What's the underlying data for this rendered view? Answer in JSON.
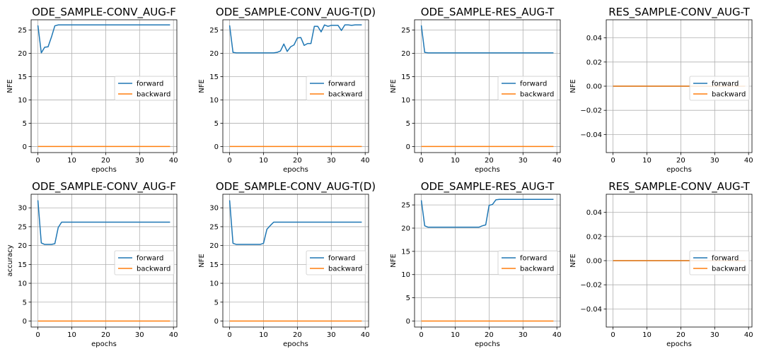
{
  "colors": {
    "forward": "#1f77b4",
    "backward": "#ff7f0e",
    "grid": "#b0b0b0"
  },
  "chart_data": [
    {
      "type": "line",
      "title": "ODE_SAMPLE-CONV_AUG-F",
      "xlabel": "epochs",
      "ylabel": "NFE",
      "xlim": [
        -2,
        41
      ],
      "ylim": [
        -1.3,
        27.2
      ],
      "xticks": [
        0,
        10,
        20,
        30,
        40
      ],
      "yticks": [
        0,
        5,
        10,
        15,
        20,
        25
      ],
      "yticklabels": [
        "0",
        "5",
        "10",
        "15",
        "20",
        "25"
      ],
      "grid": true,
      "legend": "center-right",
      "series": [
        {
          "name": "forward",
          "values": [
            26,
            20.1,
            21.3,
            21.4,
            23.5,
            25.9,
            26.1,
            26.1,
            26.1,
            26.1,
            26.1,
            26.1,
            26.1,
            26.1,
            26.1,
            26.1,
            26.1,
            26.1,
            26.1,
            26.1,
            26.1,
            26.1,
            26.1,
            26.1,
            26.1,
            26.1,
            26.1,
            26.1,
            26.1,
            26.1,
            26.1,
            26.1,
            26.1,
            26.1,
            26.1,
            26.1,
            26.1,
            26.1,
            26.1,
            26.1
          ]
        },
        {
          "name": "backward",
          "values": [
            0,
            0,
            0,
            0,
            0,
            0,
            0,
            0,
            0,
            0,
            0,
            0,
            0,
            0,
            0,
            0,
            0,
            0,
            0,
            0,
            0,
            0,
            0,
            0,
            0,
            0,
            0,
            0,
            0,
            0,
            0,
            0,
            0,
            0,
            0,
            0,
            0,
            0,
            0,
            0
          ]
        }
      ]
    },
    {
      "type": "line",
      "title": "ODE_SAMPLE-CONV_AUG-T(D)",
      "xlabel": "epochs",
      "ylabel": "NFE",
      "xlim": [
        -2,
        41
      ],
      "ylim": [
        -1.3,
        27.2
      ],
      "xticks": [
        0,
        10,
        20,
        30,
        40
      ],
      "yticks": [
        0,
        5,
        10,
        15,
        20,
        25
      ],
      "yticklabels": [
        "0",
        "5",
        "10",
        "15",
        "20",
        "25"
      ],
      "grid": true,
      "legend": "center-right",
      "series": [
        {
          "name": "forward",
          "values": [
            26,
            20.2,
            20.1,
            20.1,
            20.1,
            20.1,
            20.1,
            20.1,
            20.1,
            20.1,
            20.1,
            20.1,
            20.1,
            20.1,
            20.2,
            20.5,
            22,
            20.4,
            21.4,
            21.8,
            23.3,
            23.4,
            21.7,
            22.1,
            22.1,
            25.8,
            25.8,
            24.6,
            26.1,
            25.8,
            26,
            26,
            26,
            24.9,
            26.1,
            26.1,
            26,
            26.1,
            26.1,
            26.1
          ]
        },
        {
          "name": "backward",
          "values": [
            0,
            0,
            0,
            0,
            0,
            0,
            0,
            0,
            0,
            0,
            0,
            0,
            0,
            0,
            0,
            0,
            0,
            0,
            0,
            0,
            0,
            0,
            0,
            0,
            0,
            0,
            0,
            0,
            0,
            0,
            0,
            0,
            0,
            0,
            0,
            0,
            0,
            0,
            0,
            0
          ]
        }
      ]
    },
    {
      "type": "line",
      "title": "ODE_SAMPLE-RES_AUG-T",
      "xlabel": "epochs",
      "ylabel": "NFE",
      "xlim": [
        -2,
        41
      ],
      "ylim": [
        -1.3,
        27.2
      ],
      "xticks": [
        0,
        10,
        20,
        30,
        40
      ],
      "yticks": [
        0,
        5,
        10,
        15,
        20,
        25
      ],
      "yticklabels": [
        "0",
        "5",
        "10",
        "15",
        "20",
        "25"
      ],
      "grid": true,
      "legend": "center-right",
      "series": [
        {
          "name": "forward",
          "values": [
            26,
            20.2,
            20.1,
            20.1,
            20.1,
            20.1,
            20.1,
            20.1,
            20.1,
            20.1,
            20.1,
            20.1,
            20.1,
            20.1,
            20.1,
            20.1,
            20.1,
            20.1,
            20.1,
            20.1,
            20.1,
            20.1,
            20.1,
            20.1,
            20.1,
            20.1,
            20.1,
            20.1,
            20.1,
            20.1,
            20.1,
            20.1,
            20.1,
            20.1,
            20.1,
            20.1,
            20.1,
            20.1,
            20.1,
            20.1
          ]
        },
        {
          "name": "backward",
          "values": [
            0,
            0,
            0,
            0,
            0,
            0,
            0,
            0,
            0,
            0,
            0,
            0,
            0,
            0,
            0,
            0,
            0,
            0,
            0,
            0,
            0,
            0,
            0,
            0,
            0,
            0,
            0,
            0,
            0,
            0,
            0,
            0,
            0,
            0,
            0,
            0,
            0,
            0,
            0,
            0
          ]
        }
      ]
    },
    {
      "type": "line",
      "title": "RES_SAMPLE-CONV_AUG-T",
      "xlabel": "epochs",
      "ylabel": "NFE",
      "xlim": [
        -2,
        41
      ],
      "ylim": [
        -0.055,
        0.055
      ],
      "xticks": [
        0,
        10,
        20,
        30,
        40
      ],
      "yticks": [
        -0.04,
        -0.02,
        0,
        0.02,
        0.04
      ],
      "yticklabels": [
        "−0.04",
        "−0.02",
        "0.00",
        "0.02",
        "0.04"
      ],
      "grid": true,
      "legend": "center-right",
      "series": [
        {
          "name": "forward",
          "values": [
            0,
            0,
            0,
            0,
            0,
            0,
            0,
            0,
            0,
            0,
            0,
            0,
            0,
            0,
            0,
            0,
            0,
            0,
            0,
            0,
            0,
            0,
            0,
            0,
            0,
            0,
            0,
            0,
            0,
            0,
            0,
            0,
            0,
            0,
            0,
            0,
            0,
            0,
            0,
            0
          ]
        },
        {
          "name": "backward",
          "values": [
            0,
            0,
            0,
            0,
            0,
            0,
            0,
            0,
            0,
            0,
            0,
            0,
            0,
            0,
            0,
            0,
            0,
            0,
            0,
            0,
            0,
            0,
            0,
            0,
            0,
            0,
            0,
            0,
            0,
            0,
            0,
            0,
            0,
            0,
            0,
            0,
            0,
            0,
            0,
            0
          ]
        }
      ]
    },
    {
      "type": "line",
      "title": "ODE_SAMPLE-CONV_AUG-F",
      "xlabel": "epochs",
      "ylabel": "accuracy",
      "xlim": [
        -2,
        41
      ],
      "ylim": [
        -1.6,
        33.6
      ],
      "xticks": [
        0,
        10,
        20,
        30,
        40
      ],
      "yticks": [
        0,
        5,
        10,
        15,
        20,
        25,
        30
      ],
      "yticklabels": [
        "0",
        "5",
        "10",
        "15",
        "20",
        "25",
        "30"
      ],
      "grid": true,
      "legend": "center-right",
      "series": [
        {
          "name": "forward",
          "values": [
            32,
            20.7,
            20.3,
            20.3,
            20.3,
            20.5,
            24.8,
            26.2,
            26.2,
            26.2,
            26.2,
            26.2,
            26.2,
            26.2,
            26.2,
            26.2,
            26.2,
            26.2,
            26.2,
            26.2,
            26.2,
            26.2,
            26.2,
            26.2,
            26.2,
            26.2,
            26.2,
            26.2,
            26.2,
            26.2,
            26.2,
            26.2,
            26.2,
            26.2,
            26.2,
            26.2,
            26.2,
            26.2,
            26.2,
            26.2
          ]
        },
        {
          "name": "backward",
          "values": [
            0,
            0,
            0,
            0,
            0,
            0,
            0,
            0,
            0,
            0,
            0,
            0,
            0,
            0,
            0,
            0,
            0,
            0,
            0,
            0,
            0,
            0,
            0,
            0,
            0,
            0,
            0,
            0,
            0,
            0,
            0,
            0,
            0,
            0,
            0,
            0,
            0,
            0,
            0,
            0
          ]
        }
      ]
    },
    {
      "type": "line",
      "title": "ODE_SAMPLE-CONV_AUG-T(D)",
      "xlabel": "epochs",
      "ylabel": "NFE",
      "xlim": [
        -2,
        41
      ],
      "ylim": [
        -1.6,
        33.6
      ],
      "xticks": [
        0,
        10,
        20,
        30,
        40
      ],
      "yticks": [
        0,
        5,
        10,
        15,
        20,
        25,
        30
      ],
      "yticklabels": [
        "0",
        "5",
        "10",
        "15",
        "20",
        "25",
        "30"
      ],
      "grid": true,
      "legend": "center-right",
      "series": [
        {
          "name": "forward",
          "values": [
            32,
            20.6,
            20.3,
            20.3,
            20.3,
            20.3,
            20.3,
            20.3,
            20.3,
            20.3,
            20.6,
            24.3,
            25.3,
            26.2,
            26.2,
            26.2,
            26.2,
            26.2,
            26.2,
            26.2,
            26.2,
            26.2,
            26.2,
            26.2,
            26.2,
            26.2,
            26.2,
            26.2,
            26.2,
            26.2,
            26.2,
            26.2,
            26.2,
            26.2,
            26.2,
            26.2,
            26.2,
            26.2,
            26.2,
            26.2
          ]
        },
        {
          "name": "backward",
          "values": [
            0,
            0,
            0,
            0,
            0,
            0,
            0,
            0,
            0,
            0,
            0,
            0,
            0,
            0,
            0,
            0,
            0,
            0,
            0,
            0,
            0,
            0,
            0,
            0,
            0,
            0,
            0,
            0,
            0,
            0,
            0,
            0,
            0,
            0,
            0,
            0,
            0,
            0,
            0,
            0
          ]
        }
      ]
    },
    {
      "type": "line",
      "title": "ODE_SAMPLE-RES_AUG-T",
      "xlabel": "epochs",
      "ylabel": "NFE",
      "xlim": [
        -2,
        41
      ],
      "ylim": [
        -1.3,
        27.3
      ],
      "xticks": [
        0,
        10,
        20,
        30,
        40
      ],
      "yticks": [
        0,
        5,
        10,
        15,
        20,
        25
      ],
      "yticklabels": [
        "0",
        "5",
        "10",
        "15",
        "20",
        "25"
      ],
      "grid": true,
      "legend": "center-right",
      "series": [
        {
          "name": "forward",
          "values": [
            26,
            20.5,
            20.2,
            20.2,
            20.2,
            20.2,
            20.2,
            20.2,
            20.2,
            20.2,
            20.2,
            20.2,
            20.2,
            20.2,
            20.2,
            20.2,
            20.2,
            20.2,
            20.5,
            20.7,
            24.9,
            25.1,
            26.1,
            26.2,
            26.2,
            26.2,
            26.2,
            26.2,
            26.2,
            26.2,
            26.2,
            26.2,
            26.2,
            26.2,
            26.2,
            26.2,
            26.2,
            26.2,
            26.2,
            26.2
          ]
        },
        {
          "name": "backward",
          "values": [
            0,
            0,
            0,
            0,
            0,
            0,
            0,
            0,
            0,
            0,
            0,
            0,
            0,
            0,
            0,
            0,
            0,
            0,
            0,
            0,
            0,
            0,
            0,
            0,
            0,
            0,
            0,
            0,
            0,
            0,
            0,
            0,
            0,
            0,
            0,
            0,
            0,
            0,
            0,
            0
          ]
        }
      ]
    },
    {
      "type": "line",
      "title": "RES_SAMPLE-CONV_AUG-T",
      "xlabel": "epochs",
      "ylabel": "NFE",
      "xlim": [
        -2,
        41
      ],
      "ylim": [
        -0.055,
        0.055
      ],
      "xticks": [
        0,
        10,
        20,
        30,
        40
      ],
      "yticks": [
        -0.04,
        -0.02,
        0,
        0.02,
        0.04
      ],
      "yticklabels": [
        "−0.04",
        "−0.02",
        "0.00",
        "0.02",
        "0.04"
      ],
      "grid": true,
      "legend": "center-right",
      "series": [
        {
          "name": "forward",
          "values": [
            0,
            0,
            0,
            0,
            0,
            0,
            0,
            0,
            0,
            0,
            0,
            0,
            0,
            0,
            0,
            0,
            0,
            0,
            0,
            0,
            0,
            0,
            0,
            0,
            0,
            0,
            0,
            0,
            0,
            0,
            0,
            0,
            0,
            0,
            0,
            0,
            0,
            0,
            0,
            0
          ]
        },
        {
          "name": "backward",
          "values": [
            0,
            0,
            0,
            0,
            0,
            0,
            0,
            0,
            0,
            0,
            0,
            0,
            0,
            0,
            0,
            0,
            0,
            0,
            0,
            0,
            0,
            0,
            0,
            0,
            0,
            0,
            0,
            0,
            0,
            0,
            0,
            0,
            0,
            0,
            0,
            0,
            0,
            0,
            0,
            0
          ]
        }
      ]
    }
  ]
}
